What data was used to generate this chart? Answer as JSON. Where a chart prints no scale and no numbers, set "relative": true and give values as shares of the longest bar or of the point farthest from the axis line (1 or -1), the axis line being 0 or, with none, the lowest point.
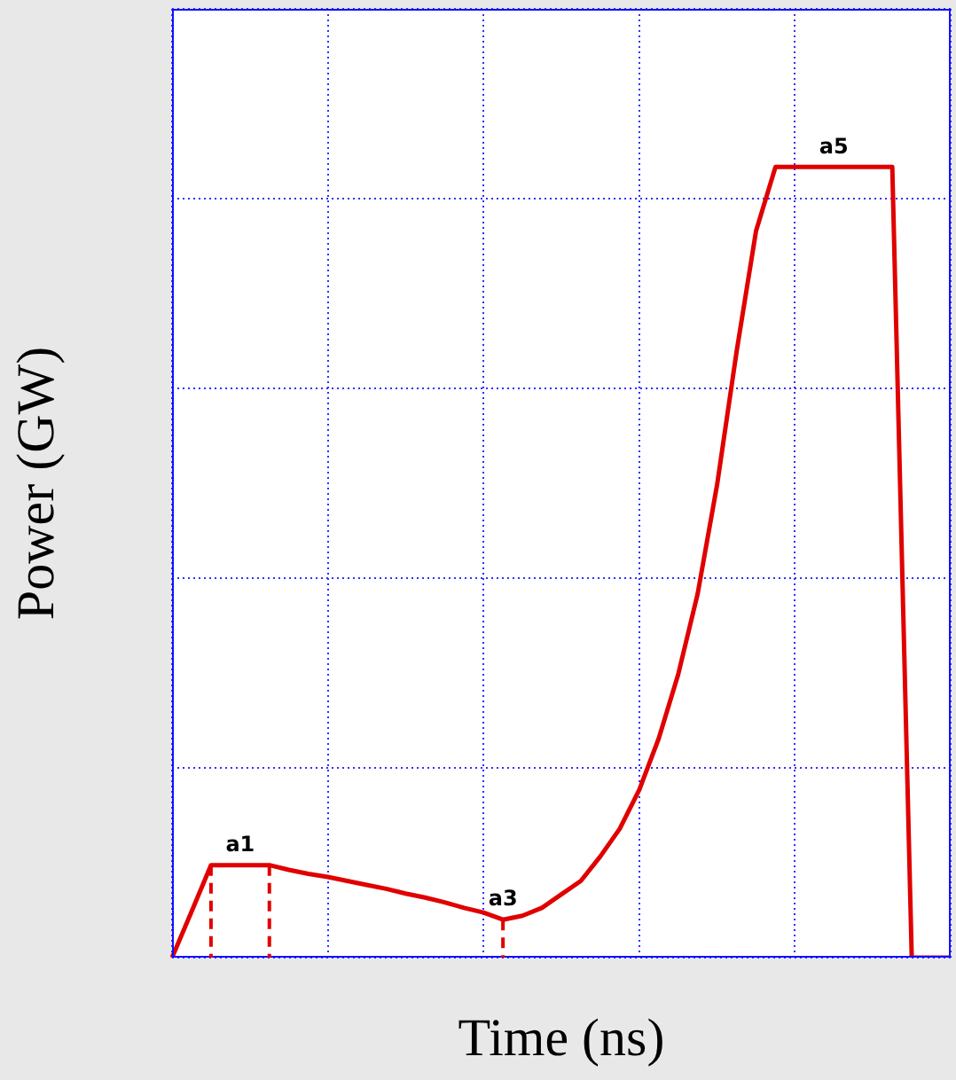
{
  "chart_data": {
    "type": "line",
    "xlabel": "Time (ns)",
    "ylabel": "Power (GW)",
    "relative": true,
    "grid": true,
    "marker": "none",
    "line_style": "solid",
    "categories": [
      null,
      null,
      null,
      null,
      null,
      null,
      null,
      null,
      null,
      null,
      null,
      null,
      null,
      null,
      null,
      null,
      null,
      null,
      null,
      null,
      null,
      null,
      null,
      null,
      null,
      null,
      null,
      null,
      null,
      null,
      null,
      null,
      null,
      null,
      null,
      null,
      null,
      null,
      null,
      null,
      null
    ],
    "series": [
      {
        "color": "#e00000",
        "values": [
          0,
          0.058,
          0.117,
          0.117,
          0.117,
          0.117,
          0.111,
          0.106,
          0.102,
          0.097,
          0.092,
          0.087,
          0.081,
          0.076,
          0.07,
          0.063,
          0.057,
          0.048,
          0.053,
          0.063,
          0.08,
          0.097,
          0.128,
          0.163,
          0.212,
          0.277,
          0.358,
          0.46,
          0.598,
          0.766,
          0.919,
          1,
          1,
          1,
          1,
          1,
          1,
          1,
          0,
          0,
          0
        ]
      }
    ],
    "annotations": [
      {
        "text": "a1",
        "y": 0.117
      },
      {
        "text": "a3",
        "y": 0.048
      },
      {
        "text": "a5",
        "y": 1
      }
    ]
  }
}
